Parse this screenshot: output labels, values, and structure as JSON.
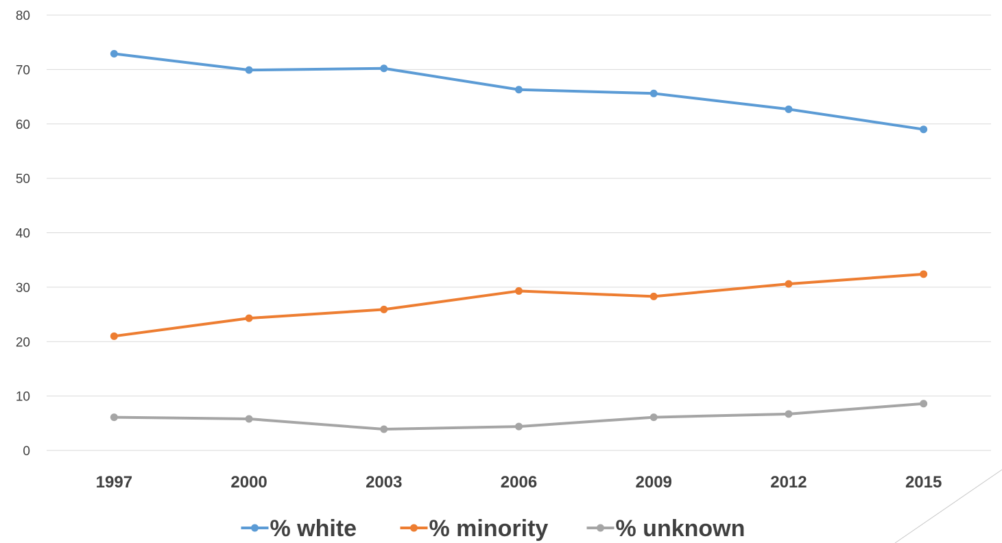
{
  "chart_data": {
    "type": "line",
    "categories": [
      "1997",
      "2000",
      "2003",
      "2006",
      "2009",
      "2012",
      "2015"
    ],
    "series": [
      {
        "name": "% white",
        "color": "#5b9bd5",
        "values": [
          72.9,
          69.9,
          70.2,
          66.3,
          65.6,
          62.7,
          59.0
        ]
      },
      {
        "name": "% minority",
        "color": "#ed7d31",
        "values": [
          21.0,
          24.3,
          25.9,
          29.3,
          28.3,
          30.6,
          32.4
        ]
      },
      {
        "name": "% unknown",
        "color": "#a5a5a5",
        "values": [
          6.1,
          5.8,
          3.9,
          4.4,
          6.1,
          6.7,
          8.6
        ]
      }
    ],
    "y_ticks": [
      0,
      10,
      20,
      30,
      40,
      50,
      60,
      70,
      80
    ],
    "ylim": [
      0,
      80
    ],
    "grid": true,
    "legend_position": "bottom",
    "gridline_color": "#d9d9d9",
    "text_color": "#404040"
  }
}
